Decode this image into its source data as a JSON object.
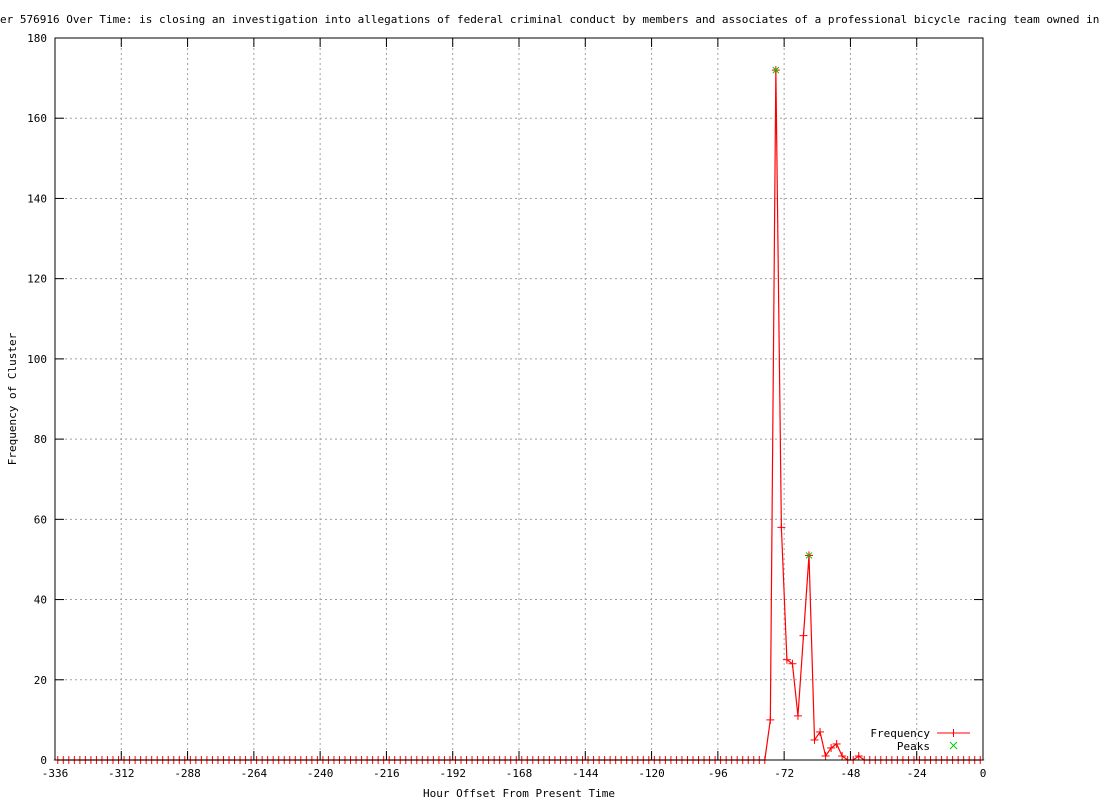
{
  "chart_data": {
    "type": "line",
    "title": "er 576916 Over Time: is closing an investigation into allegations of federal criminal conduct by members and associates of a professional bicycle racing team owned in",
    "xlabel": "Hour Offset From Present Time",
    "ylabel": "Frequency of Cluster",
    "xlim": [
      -336,
      0
    ],
    "ylim": [
      0,
      180
    ],
    "xticks": [
      -336,
      -312,
      -288,
      -264,
      -240,
      -216,
      -192,
      -168,
      -144,
      -120,
      -96,
      -72,
      -48,
      -24,
      0
    ],
    "yticks": [
      0,
      20,
      40,
      60,
      80,
      100,
      120,
      140,
      160,
      180
    ],
    "grid": true,
    "legend_position": "bottom-right",
    "sampling_hours": 2,
    "x_range_points": [
      -335,
      -1
    ],
    "baseline_value": 0,
    "series": [
      {
        "name": "Frequency",
        "color": "#ff0000",
        "marker": "+",
        "nonzero_points": [
          [
            -77,
            10
          ],
          [
            -75,
            172
          ],
          [
            -73,
            58
          ],
          [
            -71,
            25
          ],
          [
            -69,
            24
          ],
          [
            -67,
            11
          ],
          [
            -65,
            31
          ],
          [
            -63,
            51
          ],
          [
            -61,
            5
          ],
          [
            -59,
            7
          ],
          [
            -57,
            1
          ],
          [
            -55,
            3
          ],
          [
            -53,
            4
          ],
          [
            -51,
            1
          ],
          [
            -45,
            1
          ]
        ]
      },
      {
        "name": "Peaks",
        "color": "#00cc00",
        "marker": "x",
        "points": [
          [
            -75,
            172
          ],
          [
            -63,
            51
          ]
        ]
      }
    ]
  }
}
